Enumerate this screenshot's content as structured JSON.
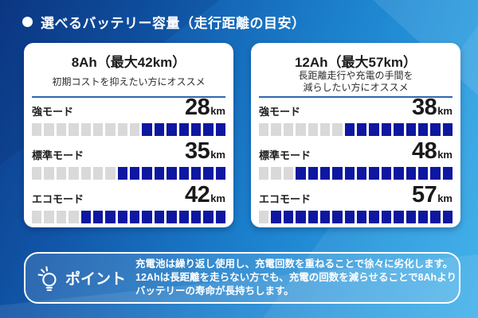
{
  "header": {
    "title": "選べるバッテリー容量（走行距離の目安）"
  },
  "cards": [
    {
      "title": "8Ah（最大42km）",
      "subtitle_lines": [
        "初期コストを抑えたい方にオススメ"
      ],
      "rows": [
        {
          "mode": "強モード",
          "value": "28",
          "unit": "km",
          "segments_total": 16,
          "gray": 9,
          "blue": 7
        },
        {
          "mode": "標準モード",
          "value": "35",
          "unit": "km",
          "segments_total": 16,
          "gray": 7,
          "blue": 9
        },
        {
          "mode": "エコモード",
          "value": "42",
          "unit": "km",
          "segments_total": 16,
          "gray": 4,
          "blue": 12
        }
      ]
    },
    {
      "title": "12Ah（最大57km）",
      "subtitle_lines": [
        "長距離走行や充電の手間を",
        "減らしたい方にオススメ"
      ],
      "rows": [
        {
          "mode": "強モード",
          "value": "38",
          "unit": "km",
          "segments_total": 16,
          "gray": 7,
          "blue": 9
        },
        {
          "mode": "標準モード",
          "value": "48",
          "unit": "km",
          "segments_total": 16,
          "gray": 3,
          "blue": 13
        },
        {
          "mode": "エコモード",
          "value": "57",
          "unit": "km",
          "segments_total": 16,
          "gray": 1,
          "blue": 15
        }
      ]
    }
  ],
  "point": {
    "label": "ポイント",
    "icon": "lightbulb-icon",
    "lines": [
      "充電池は繰り返し使用し、充電回数を重ねることで徐々に劣化します。",
      "12Ahは長距離を走らない方でも、充電の回数を減らせることで8Ahより",
      "バッテリーの寿命が長持ちします。"
    ]
  },
  "colors": {
    "bar_filled": "#0d17a0",
    "bar_empty": "#d9d9d9",
    "divider": "#2f66ad",
    "card_bg": "#ffffff",
    "text_dark": "#1c1c1c",
    "bg_dark": "#0d3a88",
    "bg_light": "#36ace9"
  },
  "chart_data": [
    {
      "type": "bar",
      "title": "8Ah（最大42km）",
      "subtitle": "初期コストを抑えたい方にオススメ",
      "categories": [
        "強モード",
        "標準モード",
        "エコモード"
      ],
      "values": [
        28,
        35,
        42
      ],
      "unit": "km",
      "xlim": [
        0,
        57
      ],
      "segments_total": 16,
      "segments_filled": [
        7,
        9,
        12
      ],
      "fill_direction": "right"
    },
    {
      "type": "bar",
      "title": "12Ah（最大57km）",
      "subtitle": "長距離走行や充電の手間を減らしたい方にオススメ",
      "categories": [
        "強モード",
        "標準モード",
        "エコモード"
      ],
      "values": [
        38,
        48,
        57
      ],
      "unit": "km",
      "xlim": [
        0,
        57
      ],
      "segments_total": 16,
      "segments_filled": [
        9,
        13,
        15
      ],
      "fill_direction": "right"
    }
  ]
}
